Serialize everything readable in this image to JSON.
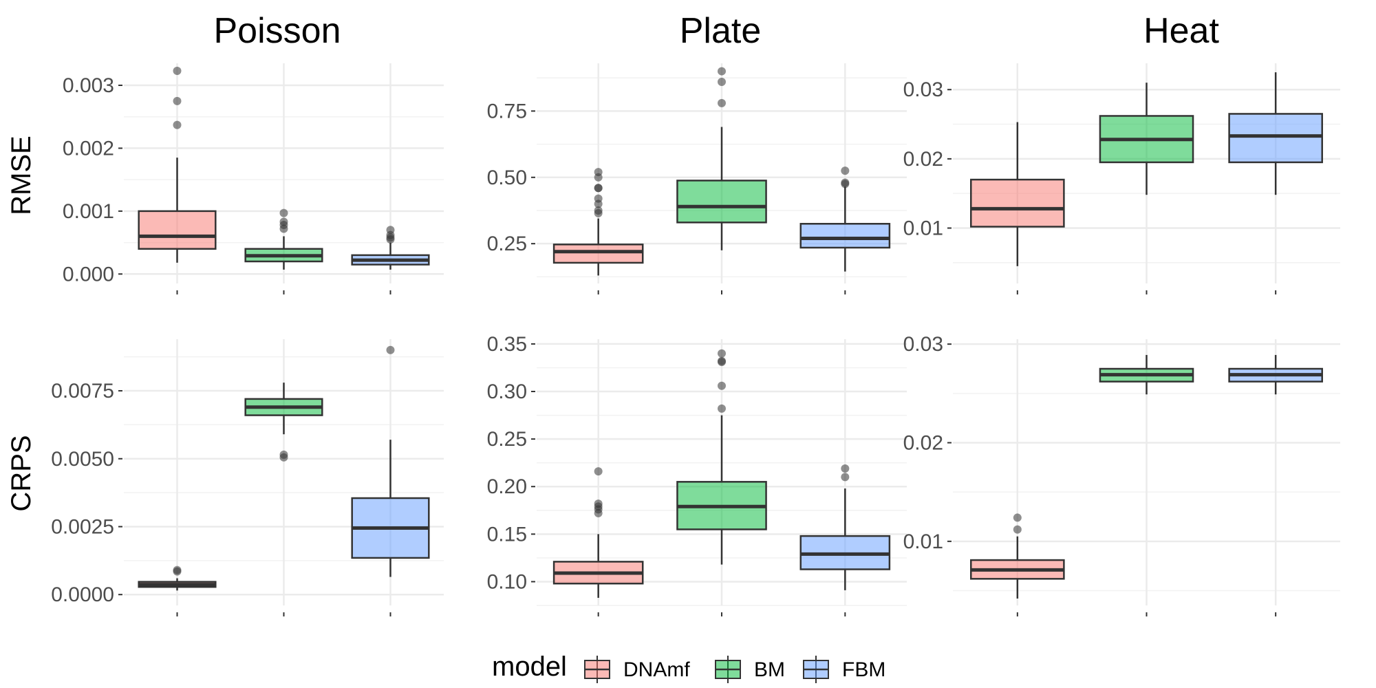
{
  "legend": {
    "title": "model",
    "items": [
      {
        "label": "DNAmf",
        "color": "#F8766D"
      },
      {
        "label": "BM",
        "color": "#00BA38"
      },
      {
        "label": "FBM",
        "color": "#619CFF"
      }
    ]
  },
  "columns": [
    "Poisson",
    "Plate",
    "Heat"
  ],
  "rows": [
    "RMSE",
    "CRPS"
  ],
  "chart_data": [
    {
      "type": "boxplot",
      "panel": "Poisson-RMSE",
      "column": "Poisson",
      "row": "RMSE",
      "ylim": [
        -0.00015,
        0.00335
      ],
      "yticks": [
        {
          "v": 0,
          "label": "0.000"
        },
        {
          "v": 0.001,
          "label": "0.001"
        },
        {
          "v": 0.002,
          "label": "0.002"
        },
        {
          "v": 0.003,
          "label": "0.003"
        }
      ],
      "boxes": [
        {
          "model": "DNAmf",
          "lower_whisker": 0.00018,
          "q1": 0.0004,
          "median": 0.0006,
          "q3": 0.001,
          "upper_whisker": 0.00185,
          "outliers": [
            0.00237,
            0.00275,
            0.00323
          ]
        },
        {
          "model": "BM",
          "lower_whisker": 7e-05,
          "q1": 0.0002,
          "median": 0.00029,
          "q3": 0.0004,
          "upper_whisker": 0.0006,
          "outliers": [
            0.00072,
            0.00078,
            0.00083,
            0.00097
          ]
        },
        {
          "model": "FBM",
          "lower_whisker": 7e-05,
          "q1": 0.00015,
          "median": 0.00022,
          "q3": 0.0003,
          "upper_whisker": 0.0005,
          "outliers": [
            0.00055,
            0.00058,
            0.00062,
            0.0007
          ]
        }
      ]
    },
    {
      "type": "boxplot",
      "panel": "Plate-RMSE",
      "column": "Plate",
      "row": "RMSE",
      "ylim": [
        0.1,
        0.93
      ],
      "yticks": [
        {
          "v": 0.25,
          "label": "0.25"
        },
        {
          "v": 0.5,
          "label": "0.50"
        },
        {
          "v": 0.75,
          "label": "0.75"
        }
      ],
      "boxes": [
        {
          "model": "DNAmf",
          "lower_whisker": 0.13,
          "q1": 0.178,
          "median": 0.22,
          "q3": 0.247,
          "upper_whisker": 0.345,
          "outliers": [
            0.365,
            0.375,
            0.4,
            0.42,
            0.46,
            0.46,
            0.5,
            0.52
          ]
        },
        {
          "model": "BM",
          "lower_whisker": 0.225,
          "q1": 0.33,
          "median": 0.39,
          "q3": 0.488,
          "upper_whisker": 0.69,
          "outliers": [
            0.78,
            0.86,
            0.9
          ]
        },
        {
          "model": "FBM",
          "lower_whisker": 0.145,
          "q1": 0.235,
          "median": 0.27,
          "q3": 0.325,
          "upper_whisker": 0.465,
          "outliers": [
            0.475,
            0.48,
            0.525
          ]
        }
      ]
    },
    {
      "type": "boxplot",
      "panel": "Heat-RMSE",
      "column": "Heat",
      "row": "RMSE",
      "ylim": [
        0.002,
        0.0338
      ],
      "yticks": [
        {
          "v": 0.01,
          "label": "0.01"
        },
        {
          "v": 0.02,
          "label": "0.02"
        },
        {
          "v": 0.03,
          "label": "0.03"
        }
      ],
      "boxes": [
        {
          "model": "DNAmf",
          "lower_whisker": 0.0045,
          "q1": 0.0102,
          "median": 0.0128,
          "q3": 0.017,
          "upper_whisker": 0.0253,
          "outliers": []
        },
        {
          "model": "BM",
          "lower_whisker": 0.0148,
          "q1": 0.0195,
          "median": 0.0228,
          "q3": 0.0262,
          "upper_whisker": 0.031,
          "outliers": []
        },
        {
          "model": "FBM",
          "lower_whisker": 0.0148,
          "q1": 0.0195,
          "median": 0.0233,
          "q3": 0.0265,
          "upper_whisker": 0.0325,
          "outliers": []
        }
      ]
    },
    {
      "type": "boxplot",
      "panel": "Poisson-CRPS",
      "column": "Poisson",
      "row": "CRPS",
      "ylim": [
        -0.0004,
        0.0094
      ],
      "yticks": [
        {
          "v": 0,
          "label": "0.0000"
        },
        {
          "v": 0.0025,
          "label": "0.0025"
        },
        {
          "v": 0.005,
          "label": "0.0050"
        },
        {
          "v": 0.0075,
          "label": "0.0075"
        }
      ],
      "boxes": [
        {
          "model": "DNAmf",
          "lower_whisker": 0.00015,
          "q1": 0.00028,
          "median": 0.00037,
          "q3": 0.00047,
          "upper_whisker": 0.0006,
          "outliers": [
            0.00085,
            0.0009
          ]
        },
        {
          "model": "BM",
          "lower_whisker": 0.0059,
          "q1": 0.0066,
          "median": 0.0069,
          "q3": 0.0072,
          "upper_whisker": 0.0078,
          "outliers": [
            0.00505,
            0.00515
          ]
        },
        {
          "model": "FBM",
          "lower_whisker": 0.00065,
          "q1": 0.00135,
          "median": 0.00245,
          "q3": 0.00355,
          "upper_whisker": 0.0057,
          "outliers": [
            0.009
          ]
        }
      ]
    },
    {
      "type": "boxplot",
      "panel": "Plate-CRPS",
      "column": "Plate",
      "row": "CRPS",
      "ylim": [
        0.075,
        0.355
      ],
      "yticks": [
        {
          "v": 0.1,
          "label": "0.10"
        },
        {
          "v": 0.15,
          "label": "0.15"
        },
        {
          "v": 0.2,
          "label": "0.20"
        },
        {
          "v": 0.25,
          "label": "0.25"
        },
        {
          "v": 0.3,
          "label": "0.30"
        },
        {
          "v": 0.35,
          "label": "0.35"
        }
      ],
      "boxes": [
        {
          "model": "DNAmf",
          "lower_whisker": 0.083,
          "q1": 0.098,
          "median": 0.109,
          "q3": 0.121,
          "upper_whisker": 0.15,
          "outliers": [
            0.172,
            0.176,
            0.179,
            0.182,
            0.216
          ]
        },
        {
          "model": "BM",
          "lower_whisker": 0.118,
          "q1": 0.155,
          "median": 0.179,
          "q3": 0.205,
          "upper_whisker": 0.275,
          "outliers": [
            0.282,
            0.306,
            0.331,
            0.332,
            0.34
          ]
        },
        {
          "model": "FBM",
          "lower_whisker": 0.091,
          "q1": 0.113,
          "median": 0.129,
          "q3": 0.148,
          "upper_whisker": 0.198,
          "outliers": [
            0.21,
            0.219
          ]
        }
      ]
    },
    {
      "type": "boxplot",
      "panel": "Heat-CRPS",
      "column": "Heat",
      "row": "CRPS",
      "ylim": [
        0.0035,
        0.0305
      ],
      "yticks": [
        {
          "v": 0.01,
          "label": "0.01"
        },
        {
          "v": 0.02,
          "label": "0.02"
        },
        {
          "v": 0.03,
          "label": "0.03"
        }
      ],
      "boxes": [
        {
          "model": "DNAmf",
          "lower_whisker": 0.0042,
          "q1": 0.0062,
          "median": 0.0071,
          "q3": 0.0081,
          "upper_whisker": 0.0105,
          "outliers": [
            0.0112,
            0.0124
          ]
        },
        {
          "model": "BM",
          "lower_whisker": 0.0249,
          "q1": 0.0262,
          "median": 0.0269,
          "q3": 0.0275,
          "upper_whisker": 0.0289,
          "outliers": []
        },
        {
          "model": "FBM",
          "lower_whisker": 0.0249,
          "q1": 0.0262,
          "median": 0.0269,
          "q3": 0.0275,
          "upper_whisker": 0.0289,
          "outliers": []
        }
      ]
    }
  ]
}
